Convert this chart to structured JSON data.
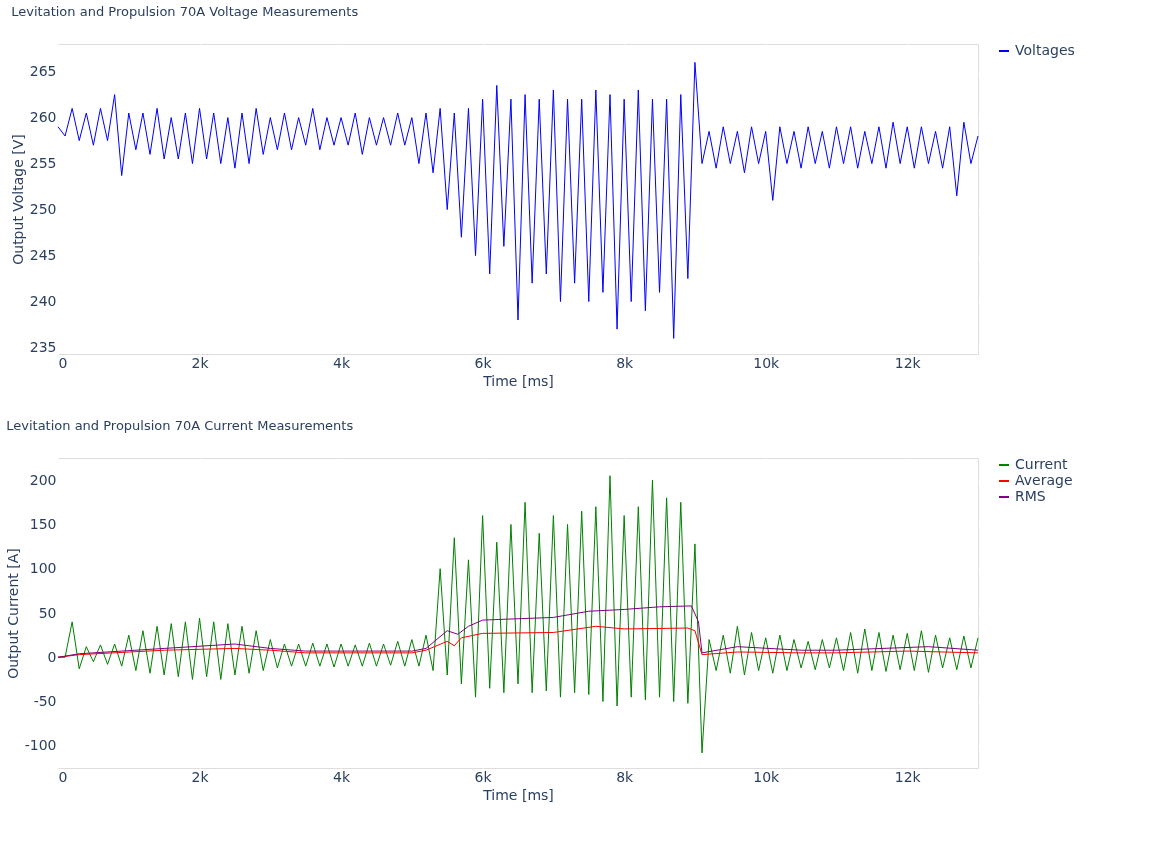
{
  "chart_data": [
    {
      "type": "line",
      "title": "Levitation and Propulsion 70A Voltage Measurements",
      "xlabel": "Time [ms]",
      "ylabel": "Output Voltage [V]",
      "legend": "top right",
      "grid": true,
      "xlim": [
        0,
        13000
      ],
      "xticks": [
        0,
        {
          "value": 2000,
          "label": "2k"
        },
        {
          "value": 4000,
          "label": "4k"
        },
        {
          "value": 6000,
          "label": "6k"
        },
        {
          "value": 8000,
          "label": "8k"
        },
        {
          "value": 10000,
          "label": "10k"
        },
        {
          "value": 12000,
          "label": "12k"
        }
      ],
      "ylim": [
        234.3,
        268
      ],
      "yticks": [
        235,
        240,
        245,
        250,
        255,
        260,
        265
      ],
      "x": [
        0,
        100,
        200,
        300,
        400,
        500,
        600,
        700,
        800,
        900,
        1000,
        1100,
        1200,
        1300,
        1400,
        1500,
        1600,
        1700,
        1800,
        1900,
        2000,
        2100,
        2200,
        2300,
        2400,
        2500,
        2600,
        2700,
        2800,
        2900,
        3000,
        3100,
        3200,
        3300,
        3400,
        3500,
        3600,
        3700,
        3800,
        3900,
        4000,
        4100,
        4200,
        4300,
        4400,
        4500,
        4600,
        4700,
        4800,
        4900,
        5000,
        5100,
        5200,
        5300,
        5400,
        5500,
        5600,
        5700,
        5800,
        5900,
        6000,
        6100,
        6200,
        6300,
        6400,
        6500,
        6600,
        6700,
        6800,
        6900,
        7000,
        7100,
        7200,
        7300,
        7400,
        7500,
        7600,
        7700,
        7800,
        7900,
        8000,
        8100,
        8200,
        8300,
        8400,
        8500,
        8600,
        8700,
        8800,
        8900,
        9000,
        9100,
        9200,
        9300,
        9400,
        9500,
        9600,
        9700,
        9800,
        9900,
        10000,
        10100,
        10200,
        10300,
        10400,
        10500,
        10600,
        10700,
        10800,
        10900,
        11000,
        11100,
        11200,
        11300,
        11400,
        11500,
        11600,
        11700,
        11800,
        11900,
        12000,
        12100,
        12200,
        12300,
        12400,
        12500,
        12600,
        12700,
        12800,
        12900,
        13000
      ],
      "series": [
        {
          "name": "Voltages",
          "color": "#0000ff",
          "values": [
            259,
            258,
            261,
            257.5,
            260.5,
            257,
            261,
            257.5,
            262.5,
            253.7,
            260.5,
            256.5,
            260.5,
            256,
            261,
            255.5,
            260,
            255.5,
            260.5,
            255,
            261,
            255.5,
            260.5,
            255,
            260,
            254.5,
            260.5,
            255,
            261,
            256,
            260,
            256.5,
            260.5,
            256.5,
            260,
            257,
            261,
            256.5,
            260,
            257,
            260,
            257,
            260.5,
            256,
            260,
            257,
            260,
            257,
            260.5,
            257,
            260,
            255,
            260.5,
            254,
            261,
            250,
            260.5,
            247,
            261,
            245,
            262,
            243,
            263.5,
            246,
            262,
            238,
            262.5,
            242,
            262,
            243,
            263,
            240,
            262,
            242,
            262,
            240,
            263,
            241,
            262.5,
            237,
            262,
            240,
            263,
            239,
            262,
            241,
            262,
            236,
            262.5,
            242.5,
            266,
            255,
            258.5,
            254.5,
            259,
            255,
            258.5,
            254,
            259,
            255,
            258.5,
            251,
            259,
            255,
            258.5,
            254.5,
            259,
            255,
            258.5,
            254.5,
            259,
            255,
            259,
            254.5,
            258.5,
            255,
            259,
            254.5,
            259.5,
            255,
            259,
            254.5,
            259,
            255,
            258.5,
            254.5,
            259,
            251.5,
            259.5,
            255,
            258
          ]
        }
      ]
    },
    {
      "type": "line",
      "title": "Levitation and Propulsion 70A Current Measurements",
      "xlabel": "Time [ms]",
      "ylabel": "Output Current [A]",
      "legend": "top right",
      "grid": true,
      "xlim": [
        0,
        13000
      ],
      "xticks": [
        0,
        {
          "value": 2000,
          "label": "2k"
        },
        {
          "value": 4000,
          "label": "4k"
        },
        {
          "value": 6000,
          "label": "6k"
        },
        {
          "value": 8000,
          "label": "8k"
        },
        {
          "value": 10000,
          "label": "10k"
        },
        {
          "value": 12000,
          "label": "12k"
        }
      ],
      "ylim": [
        -125,
        225
      ],
      "yticks": [
        -100,
        -50,
        0,
        50,
        100,
        150,
        200
      ],
      "x": [
        0,
        100,
        200,
        300,
        400,
        500,
        600,
        700,
        800,
        900,
        1000,
        1100,
        1200,
        1300,
        1400,
        1500,
        1600,
        1700,
        1800,
        1900,
        2000,
        2100,
        2200,
        2300,
        2400,
        2500,
        2600,
        2700,
        2800,
        2900,
        3000,
        3100,
        3200,
        3300,
        3400,
        3500,
        3600,
        3700,
        3800,
        3900,
        4000,
        4100,
        4200,
        4300,
        4400,
        4500,
        4600,
        4700,
        4800,
        4900,
        5000,
        5100,
        5200,
        5300,
        5400,
        5500,
        5600,
        5700,
        5800,
        5900,
        6000,
        6100,
        6200,
        6300,
        6400,
        6500,
        6600,
        6700,
        6800,
        6900,
        7000,
        7100,
        7200,
        7300,
        7400,
        7500,
        7600,
        7700,
        7800,
        7900,
        8000,
        8100,
        8200,
        8300,
        8400,
        8500,
        8600,
        8700,
        8800,
        8900,
        9000,
        9100,
        9200,
        9300,
        9400,
        9500,
        9600,
        9700,
        9800,
        9900,
        10000,
        10100,
        10200,
        10300,
        10400,
        10500,
        10600,
        10700,
        10800,
        10900,
        11000,
        11100,
        11200,
        11300,
        11400,
        11500,
        11600,
        11700,
        11800,
        11900,
        12000,
        12100,
        12200,
        12300,
        12400,
        12500,
        12600,
        12700,
        12800,
        12900,
        13000
      ],
      "series": [
        {
          "name": "Current",
          "color": "#008000",
          "values": [
            0,
            0,
            40,
            -13,
            12,
            -5,
            14,
            -8,
            15,
            -10,
            25,
            -15,
            30,
            -18,
            35,
            -20,
            38,
            -22,
            40,
            -25,
            44,
            -22,
            40,
            -25,
            38,
            -20,
            35,
            -18,
            30,
            -15,
            20,
            -12,
            15,
            -10,
            15,
            -10,
            16,
            -10,
            15,
            -11,
            15,
            -10,
            14,
            -10,
            16,
            -10,
            15,
            -9,
            18,
            -10,
            20,
            -10,
            25,
            -15,
            100,
            -20,
            135,
            -30,
            110,
            -45,
            160,
            -35,
            130,
            -40,
            150,
            -30,
            175,
            -40,
            140,
            -38,
            160,
            -45,
            150,
            -40,
            165,
            -42,
            170,
            -50,
            205,
            -55,
            160,
            -45,
            170,
            -48,
            200,
            -45,
            180,
            -50,
            175,
            -52,
            128,
            -108,
            20,
            -15,
            25,
            -18,
            35,
            -20,
            28,
            -15,
            22,
            -18,
            25,
            -15,
            20,
            -12,
            18,
            -14,
            20,
            -12,
            22,
            -15,
            28,
            -18,
            32,
            -15,
            28,
            -16,
            25,
            -14,
            27,
            -15,
            30,
            -17,
            25,
            -12,
            22,
            -14,
            24,
            -12,
            22
          ]
        },
        {
          "name": "Average",
          "color": "#ff0000",
          "x": [
            0,
            300,
            1500,
            2500,
            3000,
            3500,
            5000,
            5200,
            5500,
            5600,
            5700,
            6000,
            7000,
            7600,
            8000,
            8900,
            9000,
            9100,
            9600,
            10500,
            11000,
            12000,
            13000
          ],
          "values": [
            0,
            3,
            8,
            10,
            8,
            5,
            5,
            8,
            18,
            13,
            22,
            27,
            28,
            35,
            32,
            33,
            30,
            3,
            6,
            5,
            5,
            7,
            5
          ]
        },
        {
          "name": "RMS",
          "color": "#800080",
          "x": [
            0,
            300,
            1500,
            2500,
            3000,
            3500,
            5000,
            5200,
            5500,
            5650,
            5800,
            6000,
            7000,
            7500,
            8000,
            8500,
            8950,
            9050,
            9100,
            9600,
            10500,
            11000,
            12300,
            13000
          ],
          "values": [
            0,
            4,
            10,
            15,
            10,
            7,
            7,
            10,
            30,
            26,
            35,
            42,
            45,
            52,
            54,
            57,
            58,
            40,
            5,
            12,
            8,
            8,
            12,
            8
          ]
        }
      ]
    }
  ]
}
